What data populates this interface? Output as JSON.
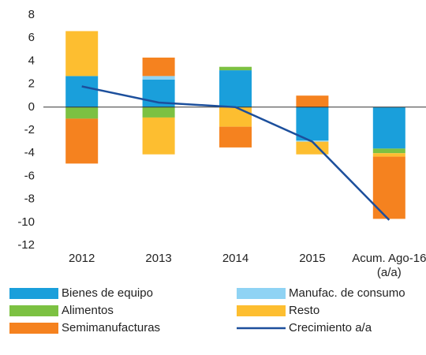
{
  "chart_data": {
    "type": "bar",
    "stacked": true,
    "categories": [
      "2012",
      "2013",
      "2014",
      "2015",
      "Acum. Ago-16 (a/a)"
    ],
    "ylim": [
      -12,
      8
    ],
    "yticks": [
      -12,
      -10,
      -8,
      -6,
      -4,
      -2,
      0,
      2,
      4,
      6,
      8
    ],
    "series": [
      {
        "name": "Bienes de equipo",
        "color": "#1a9fdb",
        "values": [
          2.7,
          2.4,
          3.2,
          -2.9,
          -3.6
        ]
      },
      {
        "name": "Manufac. de consumo",
        "color": "#8fd3f4",
        "values": [
          0,
          0.3,
          0,
          -0.1,
          0
        ]
      },
      {
        "name": "Alimentos",
        "color": "#7cc142",
        "values": [
          -1.0,
          -0.9,
          0.3,
          0,
          -0.4
        ]
      },
      {
        "name": "Resto",
        "color": "#fdbe30",
        "values": [
          3.9,
          -3.2,
          -1.7,
          -1.1,
          -0.3
        ]
      },
      {
        "name": "Semimanufacturas",
        "color": "#f5821f",
        "values": [
          -3.9,
          1.6,
          -1.8,
          1.0,
          -5.4
        ]
      },
      {
        "name": "Crecimiento a/a",
        "color": "#1c4f9c",
        "type": "line",
        "values": [
          1.8,
          0.4,
          0.0,
          -3.0,
          -9.8
        ]
      }
    ]
  }
}
